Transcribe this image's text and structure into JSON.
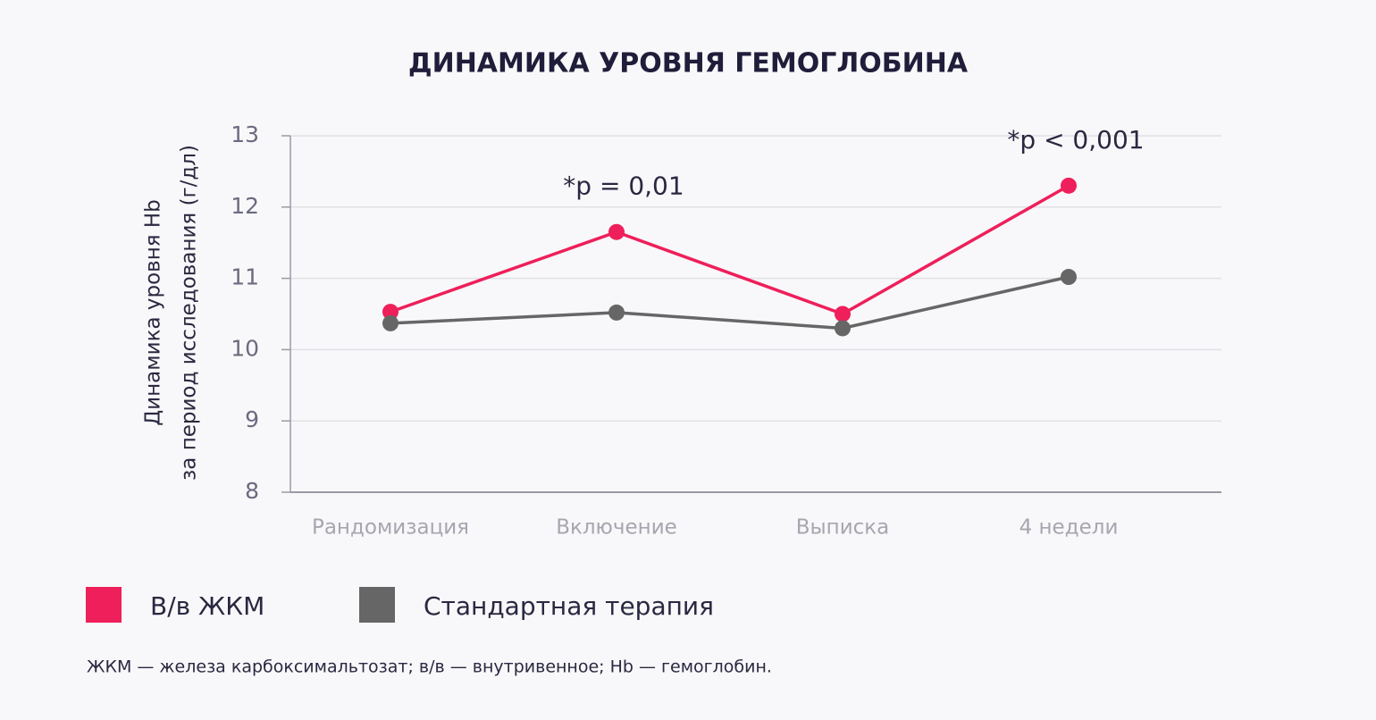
{
  "chart_data": {
    "type": "line",
    "title": "ДИНАМИКА УРОВНЯ ГЕМОГЛОБИНА",
    "y_label": [
      "Динамика уровня Hb",
      "за период исследования (г/дл)"
    ],
    "categories": [
      "Рандомизация",
      "Включение",
      "Выписка",
      "4 недели"
    ],
    "series": [
      {
        "name": "В/в ЖКМ",
        "color": "#ee1f5a",
        "values": [
          10.53,
          11.65,
          10.5,
          12.3
        ]
      },
      {
        "name": "Стандартная терапия",
        "color": "#666666",
        "values": [
          10.37,
          10.52,
          10.3,
          11.02
        ]
      }
    ],
    "ylim": [
      8,
      13
    ],
    "yticks": [
      8,
      9,
      10,
      11,
      12,
      13
    ],
    "grid": true,
    "annotations": [
      {
        "category": "Включение",
        "text": "*p = 0,01"
      },
      {
        "category": "4 недели",
        "text": "*p < 0,001"
      }
    ],
    "footnote": "ЖКМ — железа карбоксимальтозат; в/в — внутривенное; Hb — гемоглобин."
  }
}
